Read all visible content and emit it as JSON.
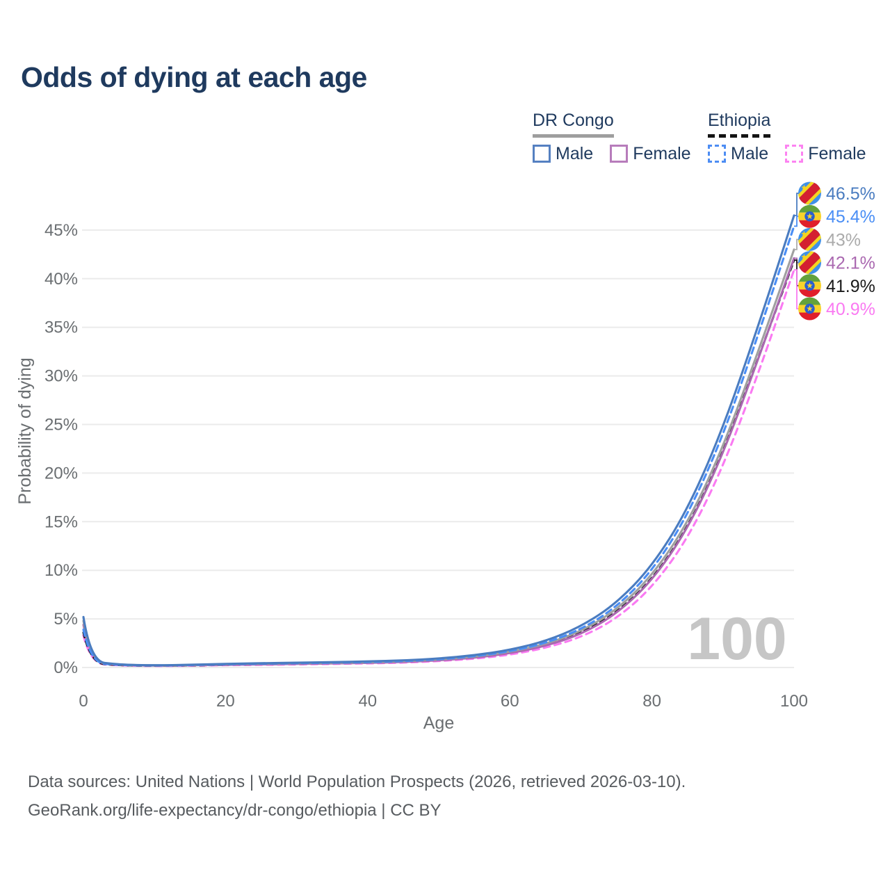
{
  "title": "Odds of dying at each age",
  "legend": {
    "groups": [
      {
        "label": "DR Congo",
        "underline_color": "#9e9e9e",
        "underline_style": "solid",
        "items": [
          {
            "label": "Male",
            "color": "#5580c1",
            "style": "solid"
          },
          {
            "label": "Female",
            "color": "#b77cbb",
            "style": "solid"
          }
        ]
      },
      {
        "label": "Ethiopia",
        "underline_color": "#141414",
        "underline_style": "dashed",
        "items": [
          {
            "label": "Male",
            "color": "#4d8df3",
            "style": "dashed"
          },
          {
            "label": "Female",
            "color": "#fc83f1",
            "style": "dashed"
          }
        ]
      }
    ]
  },
  "chart_data": {
    "type": "line",
    "title": "Odds of dying at each age",
    "xlabel": "Age",
    "ylabel": "Probability of dying",
    "xlim": [
      0,
      100
    ],
    "ylim": [
      0,
      48
    ],
    "grid": "horizontal",
    "xticks": {
      "values": [
        0,
        20,
        40,
        60,
        80,
        100
      ],
      "labels": [
        "0",
        "20",
        "40",
        "60",
        "80",
        "100"
      ]
    },
    "yticks": {
      "values": [
        0,
        5,
        10,
        15,
        20,
        25,
        30,
        35,
        40,
        45
      ],
      "labels": [
        "0%",
        "5%",
        "10%",
        "15%",
        "20%",
        "25%",
        "30%",
        "35%",
        "40%",
        "45%"
      ]
    },
    "hover_age_label": "100",
    "x": [
      0,
      1,
      5,
      10,
      15,
      20,
      25,
      30,
      35,
      40,
      45,
      50,
      55,
      60,
      65,
      70,
      75,
      80,
      85,
      90,
      95,
      100
    ],
    "series": [
      {
        "id": "drc-male",
        "name": "DR Congo Male",
        "country": "dr-congo",
        "sex": "male",
        "color": "#4a7cc0",
        "label_color": "#4a7cc0",
        "dash": "",
        "flag": "dr-congo",
        "end_label": "46.5%",
        "values": [
          5.2,
          0.65,
          0.3,
          0.22,
          0.28,
          0.38,
          0.44,
          0.5,
          0.55,
          0.62,
          0.72,
          0.92,
          1.25,
          1.8,
          2.7,
          4.2,
          6.6,
          10.4,
          16.2,
          24.6,
          35.2,
          46.5
        ]
      },
      {
        "id": "eth-male",
        "name": "Ethiopia Male",
        "country": "ethiopia",
        "sex": "male",
        "color": "#4a8ef5",
        "label_color": "#4a8ef5",
        "dash": "9 6",
        "flag": "ethiopia",
        "end_label": "45.4%",
        "values": [
          3.9,
          0.5,
          0.25,
          0.19,
          0.24,
          0.33,
          0.39,
          0.44,
          0.49,
          0.55,
          0.65,
          0.84,
          1.15,
          1.65,
          2.5,
          3.9,
          6.2,
          9.9,
          15.6,
          23.8,
          34.3,
          45.4
        ]
      },
      {
        "id": "drc-both",
        "name": "DR Congo",
        "country": "dr-congo",
        "sex": "both",
        "color": "#a0a0a0",
        "label_color": "#ababab",
        "dash": "",
        "flag": "dr-congo",
        "end_label": "43%",
        "values": [
          4.8,
          0.6,
          0.28,
          0.2,
          0.25,
          0.33,
          0.38,
          0.43,
          0.48,
          0.54,
          0.64,
          0.82,
          1.1,
          1.6,
          2.4,
          3.7,
          5.9,
          9.4,
          14.8,
          22.6,
          32.6,
          43.0
        ]
      },
      {
        "id": "drc-female",
        "name": "DR Congo Female",
        "country": "dr-congo",
        "sex": "female",
        "color": "#aa68b0",
        "label_color": "#aa68b0",
        "dash": "",
        "flag": "dr-congo",
        "end_label": "42.1%",
        "values": [
          4.4,
          0.56,
          0.26,
          0.18,
          0.22,
          0.28,
          0.32,
          0.37,
          0.42,
          0.47,
          0.56,
          0.73,
          1.0,
          1.45,
          2.2,
          3.4,
          5.5,
          8.9,
          14.2,
          21.9,
          31.8,
          42.1
        ]
      },
      {
        "id": "eth-both",
        "name": "Ethiopia",
        "country": "ethiopia",
        "sex": "both",
        "color": "#1e1e1e",
        "label_color": "#1a1a1a",
        "dash": "7 6",
        "flag": "ethiopia",
        "end_label": "41.9%",
        "values": [
          3.6,
          0.46,
          0.23,
          0.17,
          0.21,
          0.28,
          0.33,
          0.38,
          0.43,
          0.49,
          0.58,
          0.75,
          1.02,
          1.5,
          2.25,
          3.5,
          5.6,
          9.0,
          14.3,
          22.0,
          31.9,
          41.9
        ]
      },
      {
        "id": "eth-female",
        "name": "Ethiopia Female",
        "country": "ethiopia",
        "sex": "female",
        "color": "#fa7af2",
        "label_color": "#fa7af2",
        "dash": "9 7",
        "flag": "ethiopia",
        "end_label": "40.9%",
        "values": [
          3.3,
          0.42,
          0.21,
          0.15,
          0.18,
          0.24,
          0.28,
          0.32,
          0.37,
          0.42,
          0.5,
          0.66,
          0.9,
          1.3,
          2.0,
          3.1,
          5.0,
          8.2,
          13.2,
          20.6,
          30.3,
          40.9
        ]
      }
    ]
  },
  "footer": {
    "line1": "Data sources: United Nations | World Population Prospects (2026, retrieved 2026-03-10).",
    "line2": "GeoRank.org/life-expectancy/dr-congo/ethiopia | CC BY"
  },
  "colors": {
    "title_navy": "#1f3a5e",
    "axis_text": "#6a6e71",
    "gridline": "#ebebeb",
    "watermark": "#c6c6c6",
    "footer_text": "#575b5f"
  }
}
